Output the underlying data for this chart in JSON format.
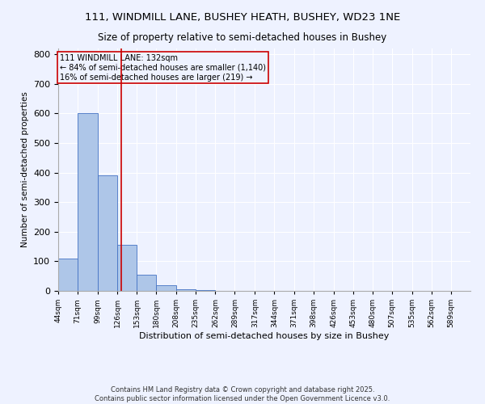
{
  "title1": "111, WINDMILL LANE, BUSHEY HEATH, BUSHEY, WD23 1NE",
  "title2": "Size of property relative to semi-detached houses in Bushey",
  "xlabel": "Distribution of semi-detached houses by size in Bushey",
  "ylabel": "Number of semi-detached properties",
  "footnote1": "Contains HM Land Registry data © Crown copyright and database right 2025.",
  "footnote2": "Contains public sector information licensed under the Open Government Licence v3.0.",
  "annotation_line1": "111 WINDMILL LANE: 132sqm",
  "annotation_line2": "← 84% of semi-detached houses are smaller (1,140)",
  "annotation_line3": "16% of semi-detached houses are larger (219) →",
  "property_size": 132,
  "bar_edges": [
    44,
    71,
    99,
    126,
    153,
    180,
    208,
    235,
    262,
    289,
    317,
    344,
    371,
    398,
    426,
    453,
    480,
    507,
    535,
    562,
    589
  ],
  "bar_heights": [
    110,
    600,
    390,
    155,
    55,
    20,
    5,
    2,
    0,
    0,
    0,
    0,
    0,
    0,
    0,
    0,
    0,
    0,
    0,
    0,
    0
  ],
  "bar_color": "#aec6e8",
  "bar_edge_color": "#4472c4",
  "red_line_color": "#cc0000",
  "annotation_box_color": "#cc0000",
  "background_color": "#eef2ff",
  "ylim": [
    0,
    820
  ],
  "yticks": [
    0,
    100,
    200,
    300,
    400,
    500,
    600,
    700,
    800
  ]
}
